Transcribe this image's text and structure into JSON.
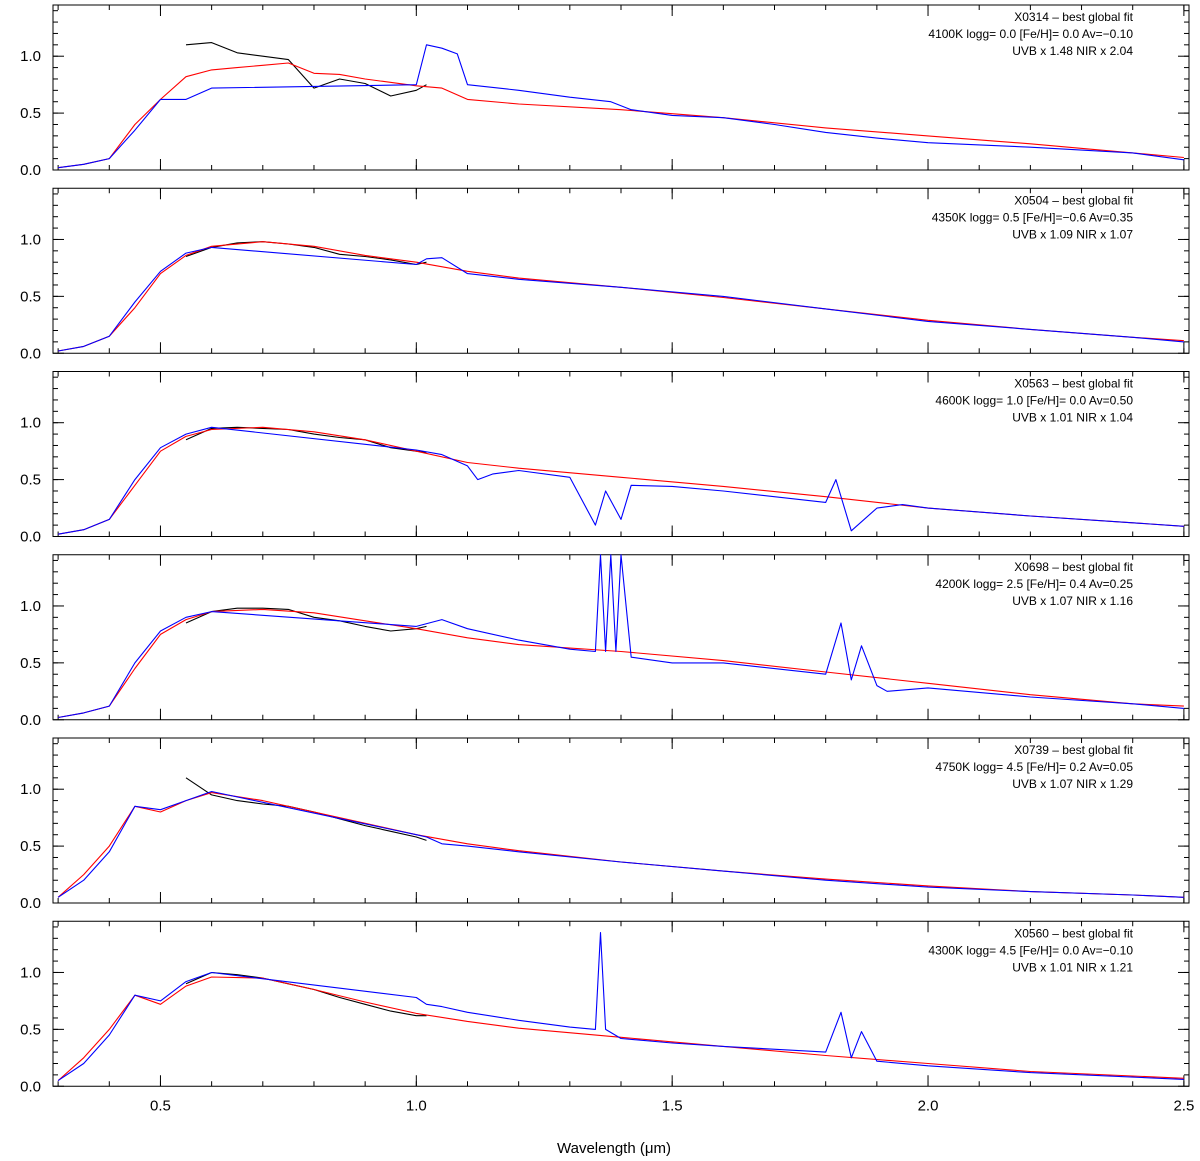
{
  "chart_data": {
    "type": "line",
    "xlabel": "Wavelength (μm)",
    "xlim": [
      0.29,
      2.51
    ],
    "ylim": [
      0.0,
      1.45
    ],
    "x_ticks": [
      0.5,
      1.0,
      1.5,
      2.0,
      2.5
    ],
    "x_tick_labels": [
      "0.5",
      "1.0",
      "1.5",
      "2.0",
      "2.5"
    ],
    "y_ticks": [
      0.0,
      0.5,
      1.0
    ],
    "y_tick_labels": [
      "0.0",
      "0.5",
      "1.0"
    ],
    "colors": {
      "UVB/VIS (observed)": "#000000",
      "NIR (observed)": "#0000ff",
      "model fit": "#ff0000"
    },
    "panels": [
      {
        "title": "X0314 – best global fit",
        "params": "4100K logg= 0.0 [Fe/H]= 0.0 Av=−0.10",
        "scale": "UVB x 1.48  NIR x 2.04",
        "black_x": [
          0.55,
          0.6,
          0.65,
          0.7,
          0.75,
          0.8,
          0.85,
          0.9,
          0.95,
          1.0,
          1.02
        ],
        "black_y": [
          1.1,
          1.12,
          1.03,
          1.0,
          0.97,
          0.72,
          0.8,
          0.76,
          0.65,
          0.7,
          0.75
        ],
        "blue_x": [
          0.3,
          0.35,
          0.4,
          0.45,
          0.5,
          0.55,
          0.6,
          1.0,
          1.02,
          1.05,
          1.08,
          1.1,
          1.2,
          1.3,
          1.38,
          1.42,
          1.5,
          1.6,
          1.7,
          1.8,
          1.9,
          2.0,
          2.2,
          2.4,
          2.5
        ],
        "blue_y": [
          0.02,
          0.05,
          0.1,
          0.35,
          0.62,
          0.62,
          0.72,
          0.75,
          1.1,
          1.07,
          1.02,
          0.75,
          0.7,
          0.64,
          0.6,
          0.53,
          0.48,
          0.46,
          0.4,
          0.33,
          0.28,
          0.24,
          0.2,
          0.15,
          0.09
        ],
        "red_x": [
          0.3,
          0.35,
          0.4,
          0.45,
          0.5,
          0.55,
          0.6,
          0.65,
          0.7,
          0.75,
          0.8,
          0.85,
          0.9,
          1.0,
          1.05,
          1.1,
          1.2,
          1.4,
          1.6,
          1.8,
          2.0,
          2.2,
          2.4,
          2.5
        ],
        "red_y": [
          0.02,
          0.05,
          0.1,
          0.4,
          0.62,
          0.82,
          0.88,
          0.9,
          0.92,
          0.94,
          0.85,
          0.84,
          0.8,
          0.74,
          0.72,
          0.62,
          0.58,
          0.53,
          0.46,
          0.37,
          0.3,
          0.23,
          0.15,
          0.11
        ]
      },
      {
        "title": "X0504 – best global fit",
        "params": "4350K logg= 0.5 [Fe/H]=−0.6 Av=0.35",
        "scale": "UVB x 1.09  NIR x 1.07",
        "black_x": [
          0.55,
          0.6,
          0.65,
          0.7,
          0.75,
          0.8,
          0.85,
          0.9,
          0.95,
          1.0,
          1.02
        ],
        "black_y": [
          0.85,
          0.93,
          0.97,
          0.98,
          0.96,
          0.93,
          0.87,
          0.85,
          0.82,
          0.78,
          0.8
        ],
        "blue_x": [
          0.3,
          0.35,
          0.4,
          0.45,
          0.5,
          0.55,
          0.6,
          1.0,
          1.02,
          1.05,
          1.1,
          1.2,
          1.4,
          1.6,
          1.8,
          2.0,
          2.2,
          2.4,
          2.5
        ],
        "blue_y": [
          0.02,
          0.06,
          0.15,
          0.45,
          0.72,
          0.88,
          0.93,
          0.78,
          0.83,
          0.84,
          0.7,
          0.65,
          0.58,
          0.5,
          0.39,
          0.28,
          0.21,
          0.14,
          0.1
        ],
        "red_x": [
          0.3,
          0.35,
          0.4,
          0.45,
          0.5,
          0.55,
          0.6,
          0.7,
          0.8,
          0.9,
          1.0,
          1.1,
          1.2,
          1.4,
          1.6,
          1.8,
          2.0,
          2.2,
          2.4,
          2.5
        ],
        "red_y": [
          0.02,
          0.06,
          0.15,
          0.4,
          0.7,
          0.86,
          0.94,
          0.98,
          0.94,
          0.86,
          0.8,
          0.72,
          0.66,
          0.58,
          0.49,
          0.39,
          0.29,
          0.21,
          0.14,
          0.11
        ]
      },
      {
        "title": "X0563 – best global fit",
        "params": "4600K logg= 1.0 [Fe/H]= 0.0 Av=0.50",
        "scale": "UVB x 1.01  NIR x 1.04",
        "black_x": [
          0.55,
          0.6,
          0.65,
          0.7,
          0.75,
          0.8,
          0.85,
          0.9,
          0.95,
          1.0,
          1.02
        ],
        "black_y": [
          0.85,
          0.95,
          0.96,
          0.95,
          0.94,
          0.9,
          0.87,
          0.85,
          0.78,
          0.75,
          0.74
        ],
        "blue_x": [
          0.3,
          0.35,
          0.4,
          0.45,
          0.5,
          0.55,
          0.6,
          1.0,
          1.05,
          1.1,
          1.12,
          1.15,
          1.2,
          1.3,
          1.35,
          1.37,
          1.4,
          1.42,
          1.5,
          1.6,
          1.8,
          1.82,
          1.85,
          1.9,
          1.95,
          2.0,
          2.2,
          2.4,
          2.5
        ],
        "blue_y": [
          0.02,
          0.06,
          0.15,
          0.5,
          0.78,
          0.9,
          0.96,
          0.76,
          0.72,
          0.62,
          0.5,
          0.55,
          0.58,
          0.52,
          0.1,
          0.4,
          0.15,
          0.45,
          0.44,
          0.4,
          0.3,
          0.5,
          0.05,
          0.25,
          0.28,
          0.25,
          0.18,
          0.12,
          0.09
        ],
        "red_x": [
          0.3,
          0.35,
          0.4,
          0.45,
          0.5,
          0.55,
          0.6,
          0.7,
          0.8,
          0.9,
          1.0,
          1.1,
          1.2,
          1.4,
          1.6,
          1.8,
          2.0,
          2.2,
          2.4,
          2.5
        ],
        "red_y": [
          0.02,
          0.06,
          0.15,
          0.45,
          0.75,
          0.88,
          0.94,
          0.96,
          0.92,
          0.85,
          0.75,
          0.65,
          0.6,
          0.52,
          0.44,
          0.35,
          0.25,
          0.18,
          0.12,
          0.09
        ]
      },
      {
        "title": "X0698 – best global fit",
        "params": "4200K logg= 2.5 [Fe/H]= 0.4 Av=0.25",
        "scale": "UVB x 1.07  NIR x 1.16",
        "black_x": [
          0.55,
          0.6,
          0.65,
          0.7,
          0.75,
          0.8,
          0.85,
          0.9,
          0.95,
          1.0,
          1.02
        ],
        "black_y": [
          0.85,
          0.95,
          0.98,
          0.98,
          0.97,
          0.9,
          0.87,
          0.82,
          0.78,
          0.8,
          0.82
        ],
        "blue_x": [
          0.3,
          0.35,
          0.4,
          0.45,
          0.5,
          0.55,
          0.6,
          1.0,
          1.05,
          1.1,
          1.2,
          1.3,
          1.35,
          1.36,
          1.37,
          1.38,
          1.39,
          1.4,
          1.42,
          1.5,
          1.6,
          1.8,
          1.83,
          1.85,
          1.87,
          1.9,
          1.92,
          2.0,
          2.2,
          2.4,
          2.5
        ],
        "blue_y": [
          0.02,
          0.06,
          0.12,
          0.5,
          0.78,
          0.9,
          0.95,
          0.82,
          0.88,
          0.8,
          0.7,
          0.62,
          0.6,
          1.45,
          0.6,
          1.45,
          0.6,
          1.45,
          0.55,
          0.5,
          0.5,
          0.4,
          0.85,
          0.35,
          0.65,
          0.3,
          0.25,
          0.28,
          0.2,
          0.14,
          0.1
        ],
        "red_x": [
          0.3,
          0.35,
          0.4,
          0.45,
          0.5,
          0.55,
          0.6,
          0.7,
          0.8,
          0.9,
          1.0,
          1.1,
          1.2,
          1.4,
          1.6,
          1.8,
          2.0,
          2.2,
          2.4,
          2.5
        ],
        "red_y": [
          0.02,
          0.06,
          0.12,
          0.45,
          0.75,
          0.88,
          0.95,
          0.97,
          0.94,
          0.87,
          0.8,
          0.72,
          0.66,
          0.6,
          0.52,
          0.42,
          0.32,
          0.22,
          0.14,
          0.12
        ]
      },
      {
        "title": "X0739 – best global fit",
        "params": "4750K logg= 4.5 [Fe/H]= 0.2 Av=0.05",
        "scale": "UVB x 1.07  NIR x 1.29",
        "black_x": [
          0.55,
          0.6,
          0.65,
          0.7,
          0.75,
          0.8,
          0.85,
          0.9,
          0.95,
          1.0,
          1.02
        ],
        "black_y": [
          1.1,
          0.95,
          0.9,
          0.87,
          0.85,
          0.8,
          0.74,
          0.68,
          0.63,
          0.58,
          0.55
        ],
        "blue_x": [
          0.3,
          0.35,
          0.4,
          0.45,
          0.5,
          0.55,
          0.6,
          1.0,
          1.02,
          1.05,
          1.1,
          1.2,
          1.4,
          1.6,
          1.8,
          2.0,
          2.2,
          2.4,
          2.5
        ],
        "blue_y": [
          0.05,
          0.2,
          0.45,
          0.85,
          0.82,
          0.9,
          0.98,
          0.6,
          0.58,
          0.52,
          0.5,
          0.45,
          0.36,
          0.28,
          0.2,
          0.14,
          0.1,
          0.07,
          0.05
        ],
        "red_x": [
          0.3,
          0.35,
          0.4,
          0.45,
          0.5,
          0.55,
          0.6,
          0.7,
          0.8,
          0.9,
          1.0,
          1.1,
          1.2,
          1.4,
          1.6,
          1.8,
          2.0,
          2.2,
          2.4,
          2.5
        ],
        "red_y": [
          0.05,
          0.25,
          0.5,
          0.85,
          0.8,
          0.9,
          0.97,
          0.9,
          0.8,
          0.7,
          0.6,
          0.52,
          0.46,
          0.36,
          0.28,
          0.21,
          0.15,
          0.1,
          0.07,
          0.05
        ]
      },
      {
        "title": "X0560 – best global fit",
        "params": "4300K logg= 4.5 [Fe/H]= 0.0 Av=−0.10",
        "scale": "UVB x 1.01  NIR x 1.21",
        "black_x": [
          0.55,
          0.6,
          0.65,
          0.7,
          0.75,
          0.8,
          0.85,
          0.9,
          0.95,
          1.0,
          1.02
        ],
        "black_y": [
          0.9,
          1.0,
          0.98,
          0.95,
          0.9,
          0.85,
          0.78,
          0.72,
          0.66,
          0.62,
          0.62
        ],
        "blue_x": [
          0.3,
          0.35,
          0.4,
          0.45,
          0.5,
          0.55,
          0.6,
          1.0,
          1.02,
          1.05,
          1.1,
          1.2,
          1.3,
          1.35,
          1.36,
          1.37,
          1.4,
          1.5,
          1.6,
          1.8,
          1.83,
          1.85,
          1.87,
          1.9,
          2.0,
          2.2,
          2.4,
          2.5
        ],
        "blue_y": [
          0.05,
          0.2,
          0.45,
          0.8,
          0.75,
          0.92,
          1.0,
          0.78,
          0.72,
          0.7,
          0.65,
          0.58,
          0.52,
          0.5,
          1.35,
          0.5,
          0.42,
          0.38,
          0.35,
          0.3,
          0.65,
          0.25,
          0.48,
          0.22,
          0.18,
          0.12,
          0.08,
          0.06
        ],
        "red_x": [
          0.3,
          0.35,
          0.4,
          0.45,
          0.5,
          0.55,
          0.6,
          0.7,
          0.8,
          0.9,
          1.0,
          1.1,
          1.2,
          1.4,
          1.6,
          1.8,
          2.0,
          2.2,
          2.4,
          2.5
        ],
        "red_y": [
          0.05,
          0.25,
          0.5,
          0.8,
          0.72,
          0.88,
          0.96,
          0.95,
          0.85,
          0.74,
          0.64,
          0.57,
          0.51,
          0.43,
          0.35,
          0.27,
          0.2,
          0.13,
          0.09,
          0.07
        ]
      }
    ]
  }
}
